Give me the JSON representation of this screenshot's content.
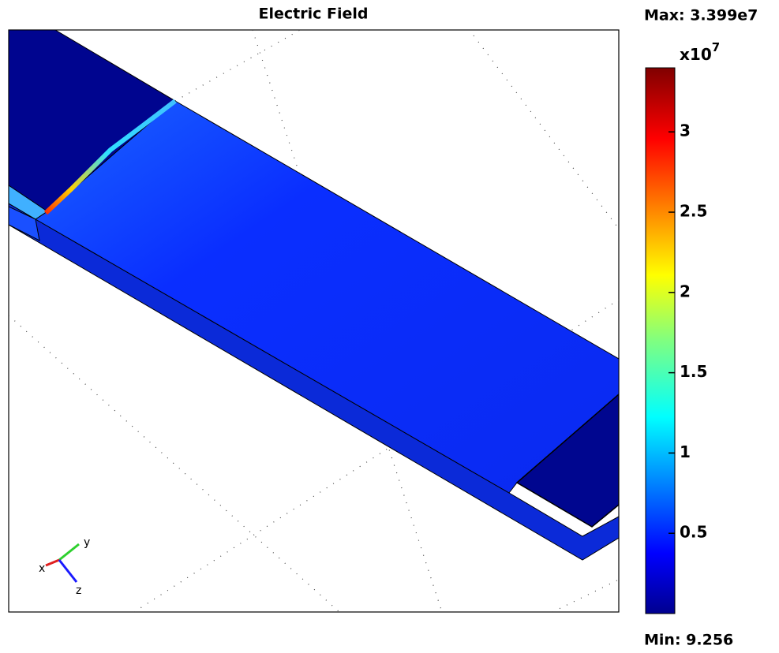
{
  "chart_data": {
    "type": "surface",
    "title": "Electric Field",
    "max_label": "Max: 3.399e7",
    "min_label": "Min: 9.256",
    "colorbar": {
      "multiplier_base": "x10",
      "multiplier_exponent": "7",
      "clim": [
        9.256e-07,
        3.399
      ],
      "ticks": [
        0.5,
        1,
        1.5,
        2,
        2.5,
        3
      ]
    },
    "axes_triad": {
      "x": "x",
      "y": "y",
      "z": "z"
    }
  }
}
